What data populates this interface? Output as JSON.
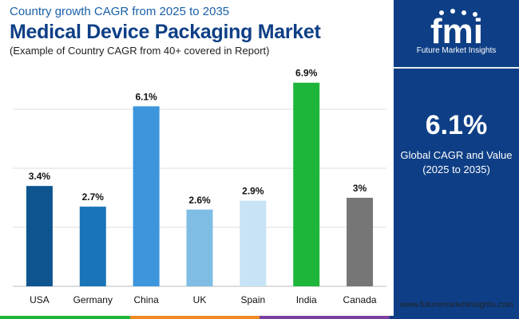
{
  "header": {
    "subtitle": "Country growth CAGR from 2025 to 2035",
    "title": "Medical Device Packaging Market",
    "note": "(Example of Country CAGR from 40+ covered in Report)"
  },
  "chart_data": {
    "type": "bar",
    "categories": [
      "USA",
      "Germany",
      "China",
      "UK",
      "Spain",
      "India",
      "Canada"
    ],
    "values": [
      3.4,
      2.7,
      6.1,
      2.6,
      2.9,
      6.9,
      3.0
    ],
    "labels": [
      "3.4%",
      "2.7%",
      "6.1%",
      "2.6%",
      "2.9%",
      "6.9%",
      "3%"
    ],
    "colors": [
      "#0e5590",
      "#1a75b8",
      "#3d95dc",
      "#7fbde5",
      "#c7e3f5",
      "#1eb63a",
      "#767676"
    ],
    "ylim": [
      0,
      7
    ],
    "gridlines": [
      0,
      2,
      4,
      6
    ],
    "grid_color": "#dddddd",
    "xlabel": "",
    "ylabel": ""
  },
  "sidebar": {
    "logo_letters": "fmi",
    "logo_text": "Future Market Insights",
    "value": "6.1%",
    "value_label_line1": "Global CAGR and Value",
    "value_label_line2": "(2025 to 2035)",
    "background": "#0e3f86"
  },
  "footer": {
    "url": "www.futuremarketinsights.com",
    "stripe_colors": [
      "#1eb63a",
      "#f08a24",
      "#7b3fa0",
      "#0e3f86"
    ]
  }
}
